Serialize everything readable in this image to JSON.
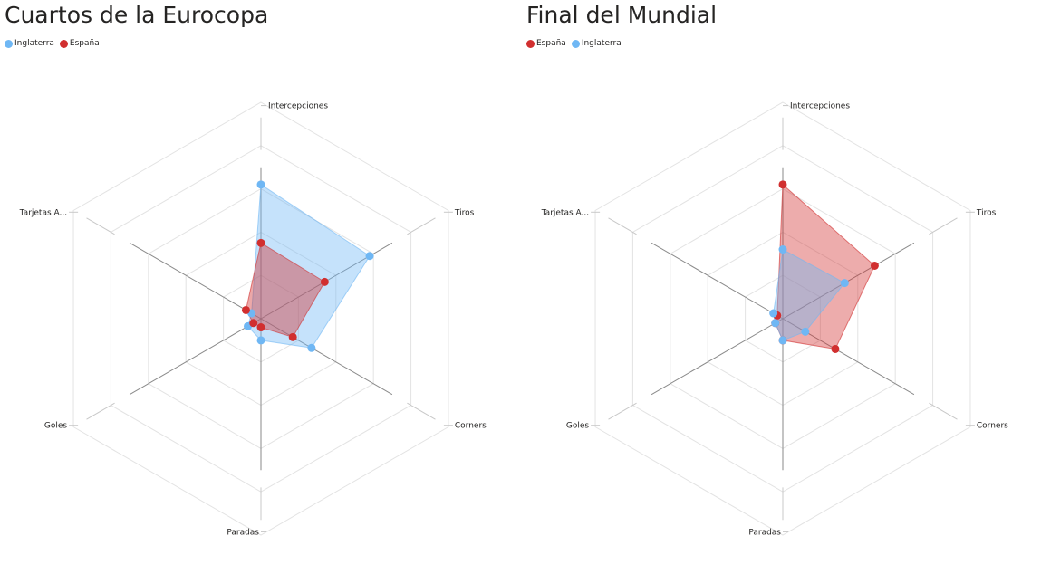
{
  "chart_data": [
    {
      "type": "radar",
      "title": "Cuartos de la Eurocopa",
      "axes": [
        "Intercepciones",
        "Tiros",
        "Corners",
        "Paradas",
        "Goles",
        "Tarjetas A..."
      ],
      "rmax": 1.0,
      "grid": true,
      "legend_position": "top-left",
      "series": [
        {
          "name": "Inglaterra",
          "color": "#6fb7f4",
          "values": [
            0.62,
            0.58,
            0.27,
            0.1,
            0.07,
            0.05
          ]
        },
        {
          "name": "España",
          "color": "#d12f2f",
          "values": [
            0.35,
            0.34,
            0.17,
            0.04,
            0.04,
            0.08
          ]
        }
      ]
    },
    {
      "type": "radar",
      "title": "Final del Mundial",
      "axes": [
        "Intercepciones",
        "Tiros",
        "Corners",
        "Paradas",
        "Goles",
        "Tarjetas A..."
      ],
      "rmax": 1.0,
      "grid": true,
      "legend_position": "top-left",
      "series": [
        {
          "name": "España",
          "color": "#d12f2f",
          "values": [
            0.62,
            0.49,
            0.28,
            0.1,
            0.04,
            0.03
          ]
        },
        {
          "name": "Inglaterra",
          "color": "#6fb7f4",
          "values": [
            0.32,
            0.33,
            0.12,
            0.1,
            0.04,
            0.05
          ]
        }
      ]
    }
  ]
}
